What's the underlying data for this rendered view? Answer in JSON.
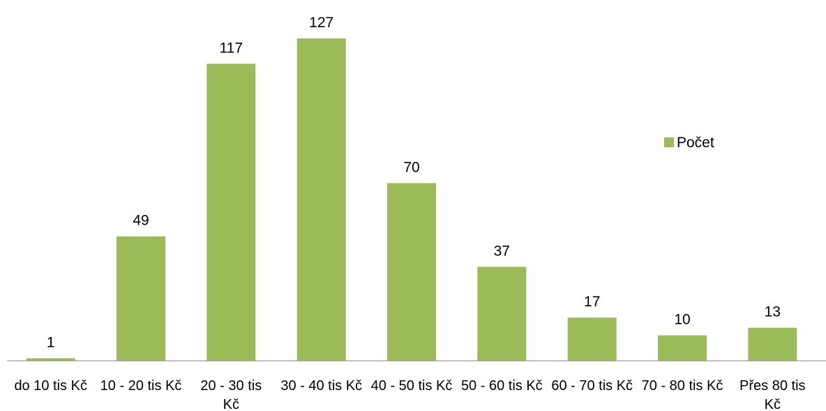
{
  "chart_data": {
    "type": "bar",
    "categories": [
      [
        "do 10 tis Kč"
      ],
      [
        "10 - 20 tis Kč"
      ],
      [
        "20  - 30 tis",
        "Kč"
      ],
      [
        "30 - 40 tis Kč"
      ],
      [
        "40 - 50 tis Kč"
      ],
      [
        "50 - 60 tis Kč"
      ],
      [
        "60 - 70 tis Kč"
      ],
      [
        "70 - 80 tis Kč"
      ],
      [
        "Přes 80 tis",
        "Kč"
      ]
    ],
    "series": [
      {
        "name": "Počet",
        "values": [
          1,
          49,
          117,
          127,
          70,
          37,
          17,
          10,
          13
        ],
        "color": "#9BBB59"
      }
    ],
    "ylim": [
      0,
      127
    ],
    "grid": false,
    "legend": "right",
    "data_labels": true
  }
}
